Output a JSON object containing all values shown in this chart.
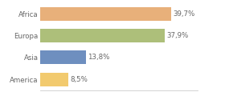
{
  "categories": [
    "America",
    "Asia",
    "Europa",
    "Africa"
  ],
  "values": [
    8.5,
    13.8,
    37.9,
    39.7
  ],
  "bar_colors": [
    "#f2ca6e",
    "#6e8fbf",
    "#adbf7a",
    "#e8b07a"
  ],
  "labels": [
    "8,5%",
    "13,8%",
    "37,9%",
    "39,7%"
  ],
  "background_color": "#ffffff",
  "xlim": [
    0,
    48
  ],
  "bar_height": 0.62,
  "label_fontsize": 6.2,
  "tick_fontsize": 6.2,
  "label_color": "#666666",
  "tick_color": "#666666"
}
